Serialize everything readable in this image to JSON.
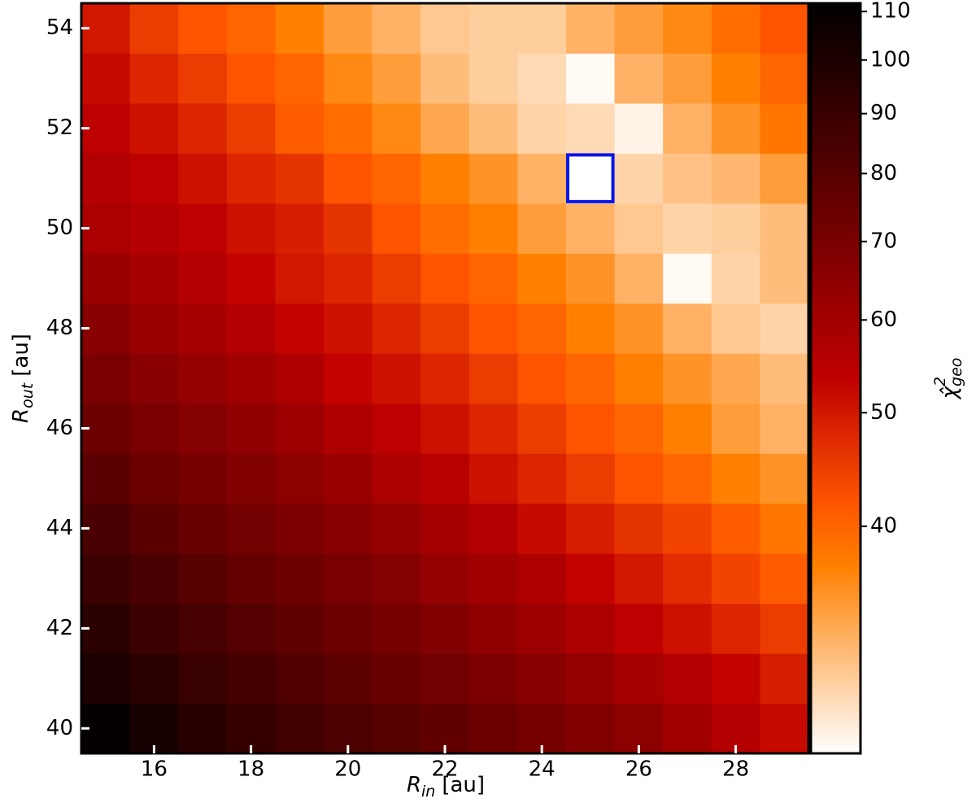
{
  "chart_data": {
    "type": "heatmap",
    "xlabel": [
      "R",
      "in",
      "[au]"
    ],
    "ylabel": [
      "R",
      "out",
      "[au]"
    ],
    "colorbar_label": [
      "χ̂",
      "2",
      "geo"
    ],
    "x": [
      15,
      16,
      17,
      18,
      19,
      20,
      21,
      22,
      23,
      24,
      25,
      26,
      27,
      28,
      29
    ],
    "y": [
      40,
      41,
      42,
      43,
      44,
      45,
      46,
      47,
      48,
      49,
      50,
      51,
      52,
      53,
      54
    ],
    "z": [
      [
        110,
        102,
        96,
        91,
        87,
        83,
        80,
        77,
        74,
        71,
        68,
        65,
        60,
        56,
        52
      ],
      [
        101,
        95,
        90,
        86,
        82,
        78,
        75,
        72,
        69,
        66,
        63,
        59,
        56,
        53,
        49
      ],
      [
        95,
        89,
        85,
        81,
        77,
        74,
        71,
        68,
        64,
        61,
        58,
        54,
        51,
        48,
        45
      ],
      [
        89,
        84,
        80,
        76,
        73,
        70,
        67,
        63,
        60,
        57,
        53,
        50,
        47,
        44,
        41
      ],
      [
        84,
        79,
        75,
        72,
        69,
        66,
        63,
        59,
        56,
        52,
        49,
        46,
        44,
        41,
        38
      ],
      [
        79,
        74,
        71,
        68,
        65,
        62,
        58,
        55,
        51,
        48,
        45,
        42,
        40,
        37,
        35
      ],
      [
        74,
        70,
        67,
        64,
        61,
        57,
        54,
        51,
        48,
        45,
        42,
        40,
        37,
        34,
        32
      ],
      [
        70,
        66,
        63,
        60,
        57,
        53,
        51,
        48,
        45,
        42,
        40,
        37,
        35,
        33,
        31
      ],
      [
        66,
        62,
        59,
        56,
        53,
        51,
        48,
        45,
        42,
        40,
        37,
        35,
        32,
        30,
        29
      ],
      [
        62,
        59,
        56,
        53,
        50,
        48,
        45,
        42,
        40,
        37,
        35,
        32,
        26,
        29,
        31
      ],
      [
        58,
        56,
        54,
        51,
        49,
        46,
        42,
        39,
        37,
        34,
        32,
        30,
        29,
        29.5,
        31
      ],
      [
        56,
        54,
        51,
        48,
        46,
        42,
        40,
        37,
        35,
        32,
        25,
        29,
        30.5,
        31.5,
        34
      ],
      [
        54,
        51,
        48,
        45,
        41,
        39,
        36,
        33,
        31,
        29,
        28.5,
        26.5,
        32,
        35,
        38
      ],
      [
        52,
        48,
        45,
        42,
        40,
        36,
        34,
        31,
        29.5,
        28.5,
        26,
        32,
        34,
        37,
        40
      ],
      [
        50,
        45,
        42,
        40,
        37,
        34,
        32,
        30,
        29.5,
        29.5,
        32,
        34,
        36,
        39,
        42
      ]
    ],
    "xlim": [
      14.5,
      29.5
    ],
    "ylim": [
      39.5,
      54.5
    ],
    "xticks": [
      16,
      18,
      20,
      22,
      24,
      26,
      28
    ],
    "yticks": [
      40,
      42,
      44,
      46,
      48,
      50,
      52,
      54
    ],
    "colormap": "gist_heat_r",
    "color_scale": "log",
    "clim": [
      25.6,
      111.8
    ],
    "colorbar_ticks": [
      40,
      50,
      60,
      70,
      80,
      90,
      100,
      110
    ],
    "highlight": {
      "x": 25,
      "y": 51,
      "color": "#0a14e6"
    }
  }
}
